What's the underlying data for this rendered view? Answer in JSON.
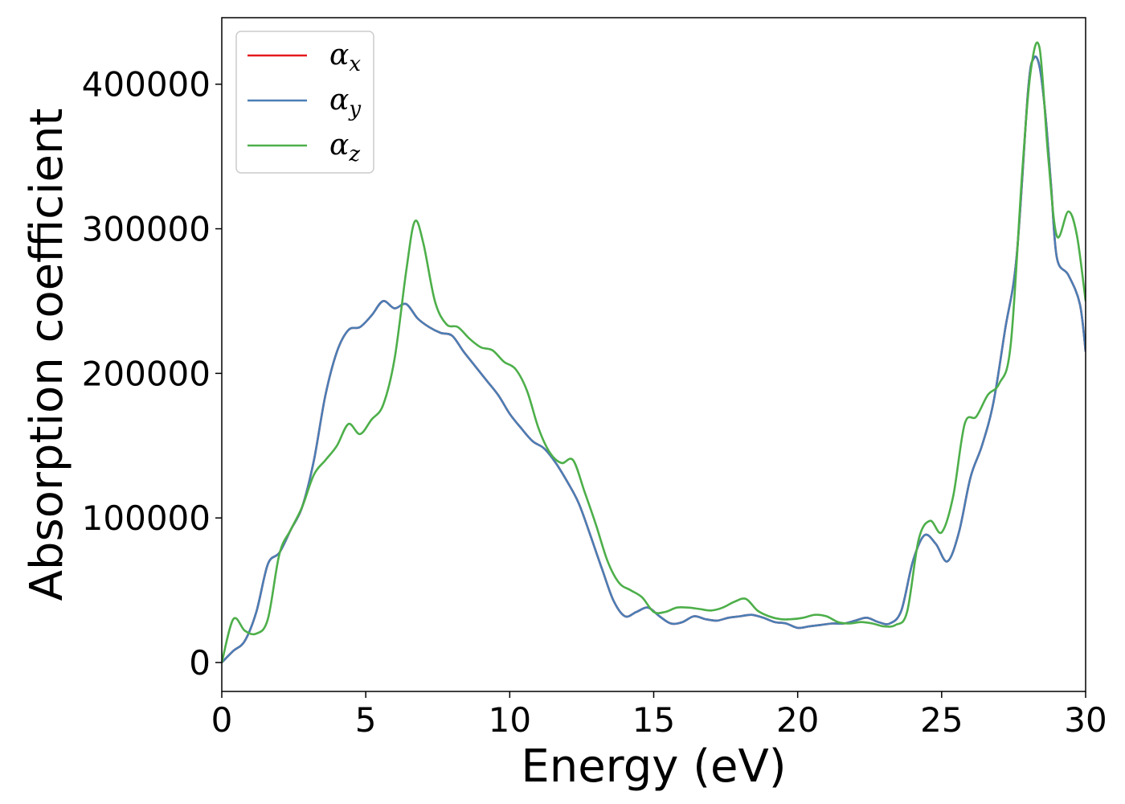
{
  "chart_data": {
    "type": "line",
    "xlabel": "Energy (eV)",
    "ylabel": "Absorption coefficient",
    "xlim": [
      0,
      30
    ],
    "ylim": [
      -20000,
      446000
    ],
    "xticks": [
      0,
      5,
      10,
      15,
      20,
      25,
      30
    ],
    "yticks": [
      0,
      100000,
      200000,
      300000,
      400000
    ],
    "grid": false,
    "legend_position": "upper-left",
    "series": [
      {
        "name": "α_x",
        "legend_symbol": "α",
        "legend_subscript": "x",
        "color": "#e41a1c",
        "x": [
          0,
          0.4,
          0.8,
          1.2,
          1.6,
          2.0,
          2.4,
          2.8,
          3.2,
          3.6,
          4.0,
          4.4,
          4.8,
          5.2,
          5.6,
          6.0,
          6.4,
          6.8,
          7.2,
          7.6,
          8.0,
          8.4,
          8.8,
          9.2,
          9.6,
          10.0,
          10.4,
          10.8,
          11.2,
          11.6,
          12.0,
          12.4,
          12.8,
          13.2,
          13.6,
          14.0,
          14.4,
          14.8,
          15.2,
          15.6,
          16.0,
          16.4,
          16.8,
          17.2,
          17.6,
          18.0,
          18.4,
          18.8,
          19.2,
          19.6,
          20.0,
          20.4,
          20.8,
          21.2,
          21.6,
          22.0,
          22.4,
          22.8,
          23.2,
          23.6,
          24.0,
          24.4,
          24.8,
          25.2,
          25.6,
          26.0,
          26.4,
          26.8,
          27.2,
          27.6,
          28.0,
          28.2,
          28.4,
          28.6,
          28.8,
          29.0,
          29.4,
          29.8,
          30.0
        ],
        "y": [
          0,
          8000,
          15000,
          35000,
          68000,
          76000,
          92000,
          108000,
          140000,
          185000,
          215000,
          230000,
          232000,
          240000,
          250000,
          245000,
          248000,
          238000,
          232000,
          228000,
          226000,
          215000,
          205000,
          195000,
          185000,
          172000,
          162000,
          153000,
          148000,
          138000,
          125000,
          110000,
          88000,
          65000,
          43000,
          32000,
          35000,
          38000,
          32000,
          27000,
          28000,
          32000,
          30000,
          29000,
          31000,
          32000,
          33000,
          31000,
          28000,
          27000,
          24000,
          25000,
          26000,
          27000,
          27000,
          29000,
          31000,
          28000,
          27000,
          36000,
          70000,
          88000,
          82000,
          70000,
          90000,
          128000,
          150000,
          180000,
          230000,
          280000,
          395000,
          418000,
          412000,
          380000,
          330000,
          280000,
          268000,
          248000,
          215000
        ]
      },
      {
        "name": "α_y",
        "legend_symbol": "α",
        "legend_subscript": "y",
        "color": "#4a7eb5",
        "x": [
          0,
          0.4,
          0.8,
          1.2,
          1.6,
          2.0,
          2.4,
          2.8,
          3.2,
          3.6,
          4.0,
          4.4,
          4.8,
          5.2,
          5.6,
          6.0,
          6.4,
          6.8,
          7.2,
          7.6,
          8.0,
          8.4,
          8.8,
          9.2,
          9.6,
          10.0,
          10.4,
          10.8,
          11.2,
          11.6,
          12.0,
          12.4,
          12.8,
          13.2,
          13.6,
          14.0,
          14.4,
          14.8,
          15.2,
          15.6,
          16.0,
          16.4,
          16.8,
          17.2,
          17.6,
          18.0,
          18.4,
          18.8,
          19.2,
          19.6,
          20.0,
          20.4,
          20.8,
          21.2,
          21.6,
          22.0,
          22.4,
          22.8,
          23.2,
          23.6,
          24.0,
          24.4,
          24.8,
          25.2,
          25.6,
          26.0,
          26.4,
          26.8,
          27.2,
          27.6,
          28.0,
          28.2,
          28.4,
          28.6,
          28.8,
          29.0,
          29.4,
          29.8,
          30.0
        ],
        "y": [
          0,
          8000,
          15000,
          35000,
          68000,
          76000,
          92000,
          108000,
          140000,
          185000,
          215000,
          230000,
          232000,
          240000,
          250000,
          245000,
          248000,
          238000,
          232000,
          228000,
          226000,
          215000,
          205000,
          195000,
          185000,
          172000,
          162000,
          153000,
          148000,
          138000,
          125000,
          110000,
          88000,
          65000,
          43000,
          32000,
          35000,
          38000,
          32000,
          27000,
          28000,
          32000,
          30000,
          29000,
          31000,
          32000,
          33000,
          31000,
          28000,
          27000,
          24000,
          25000,
          26000,
          27000,
          27000,
          29000,
          31000,
          28000,
          27000,
          36000,
          70000,
          88000,
          82000,
          70000,
          90000,
          128000,
          150000,
          180000,
          230000,
          280000,
          395000,
          418000,
          412000,
          380000,
          330000,
          280000,
          268000,
          248000,
          215000
        ]
      },
      {
        "name": "α_z",
        "legend_symbol": "α",
        "legend_subscript": "z",
        "color": "#4daf4a",
        "x": [
          0,
          0.4,
          0.8,
          1.2,
          1.6,
          2.0,
          2.4,
          2.8,
          3.2,
          3.6,
          4.0,
          4.4,
          4.8,
          5.2,
          5.6,
          6.0,
          6.4,
          6.7,
          7.0,
          7.4,
          7.8,
          8.2,
          8.6,
          9.0,
          9.4,
          9.8,
          10.2,
          10.6,
          11.0,
          11.4,
          11.8,
          12.2,
          12.6,
          13.0,
          13.4,
          13.8,
          14.2,
          14.6,
          15.0,
          15.4,
          15.8,
          16.2,
          16.6,
          17.0,
          17.4,
          17.8,
          18.2,
          18.6,
          19.0,
          19.4,
          19.8,
          20.2,
          20.6,
          21.0,
          21.4,
          21.8,
          22.2,
          22.6,
          23.0,
          23.4,
          23.8,
          24.2,
          24.6,
          25.0,
          25.4,
          25.8,
          26.2,
          26.6,
          27.0,
          27.4,
          27.8,
          28.1,
          28.4,
          28.7,
          29.0,
          29.4,
          29.7,
          30.0
        ],
        "y": [
          0,
          30000,
          22000,
          20000,
          30000,
          75000,
          92000,
          108000,
          130000,
          140000,
          150000,
          165000,
          158000,
          168000,
          178000,
          210000,
          270000,
          305000,
          290000,
          250000,
          234000,
          232000,
          224000,
          218000,
          216000,
          208000,
          203000,
          188000,
          162000,
          145000,
          138000,
          140000,
          118000,
          95000,
          70000,
          55000,
          50000,
          45000,
          35000,
          35000,
          38000,
          38000,
          37000,
          36000,
          38000,
          42000,
          44000,
          36000,
          32000,
          30000,
          30000,
          31000,
          33000,
          32000,
          28000,
          27000,
          28000,
          27000,
          25000,
          26000,
          35000,
          85000,
          98000,
          90000,
          115000,
          165000,
          170000,
          185000,
          193000,
          220000,
          340000,
          410000,
          425000,
          350000,
          295000,
          312000,
          295000,
          250000
        ]
      }
    ]
  }
}
